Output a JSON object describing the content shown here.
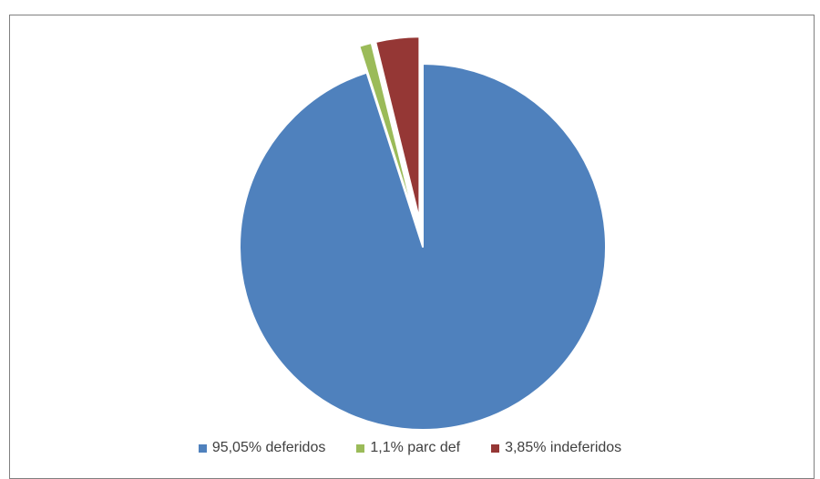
{
  "chart_data": {
    "type": "pie",
    "title": "",
    "slices": [
      {
        "label": "95,05% deferidos",
        "value": 95.05,
        "color": "#4f81bd",
        "exploded": false
      },
      {
        "label": "1,1% parc def",
        "value": 1.1,
        "color": "#9bbb59",
        "exploded": true
      },
      {
        "label": "3,85% indeferidos",
        "value": 3.85,
        "color": "#953735",
        "exploded": true
      }
    ],
    "legend_position": "bottom"
  }
}
